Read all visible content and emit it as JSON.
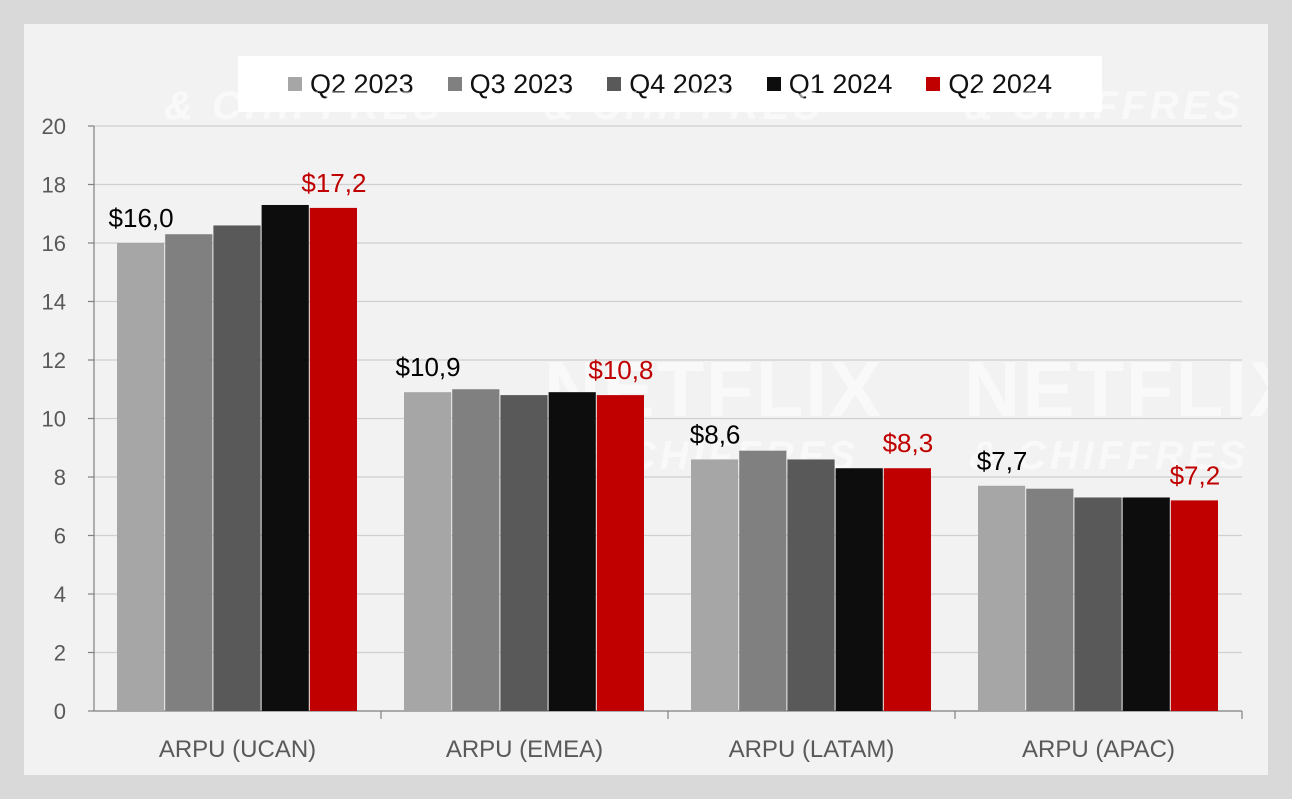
{
  "chart_data": {
    "type": "bar",
    "categories": [
      "ARPU (UCAN)",
      "ARPU (EMEA)",
      "ARPU (LATAM)",
      "ARPU (APAC)"
    ],
    "series": [
      {
        "name": "Q2 2023",
        "color": "#a6a6a6",
        "values": [
          16.0,
          10.9,
          8.6,
          7.7
        ]
      },
      {
        "name": "Q3 2023",
        "color": "#808080",
        "values": [
          16.3,
          11.0,
          8.9,
          7.6
        ]
      },
      {
        "name": "Q4 2023",
        "color": "#595959",
        "values": [
          16.6,
          10.8,
          8.6,
          7.3
        ]
      },
      {
        "name": "Q1 2024",
        "color": "#0d0d0d",
        "values": [
          17.3,
          10.9,
          8.3,
          7.3
        ]
      },
      {
        "name": "Q2 2024",
        "color": "#c00000",
        "values": [
          17.2,
          10.8,
          8.3,
          7.2
        ]
      }
    ],
    "data_labels": [
      {
        "category": 0,
        "series": 0,
        "text": "$16,0",
        "color": "#000000"
      },
      {
        "category": 0,
        "series": 4,
        "text": "$17,2",
        "color": "#c00000"
      },
      {
        "category": 1,
        "series": 0,
        "text": "$10,9",
        "color": "#000000"
      },
      {
        "category": 1,
        "series": 4,
        "text": "$10,8",
        "color": "#c00000"
      },
      {
        "category": 2,
        "series": 0,
        "text": "$8,6",
        "color": "#000000"
      },
      {
        "category": 2,
        "series": 4,
        "text": "$8,3",
        "color": "#c00000"
      },
      {
        "category": 3,
        "series": 0,
        "text": "$7,7",
        "color": "#000000"
      },
      {
        "category": 3,
        "series": 4,
        "text": "$7,2",
        "color": "#c00000"
      }
    ],
    "yticks": [
      "0",
      "2",
      "4",
      "6",
      "8",
      "10",
      "12",
      "14",
      "16",
      "18",
      "20"
    ],
    "ylim": [
      0,
      20
    ],
    "grid": true,
    "legend_position": "top"
  },
  "watermark": {
    "brand": "NETFLIX",
    "subtitle": "& CHIFFRES"
  }
}
